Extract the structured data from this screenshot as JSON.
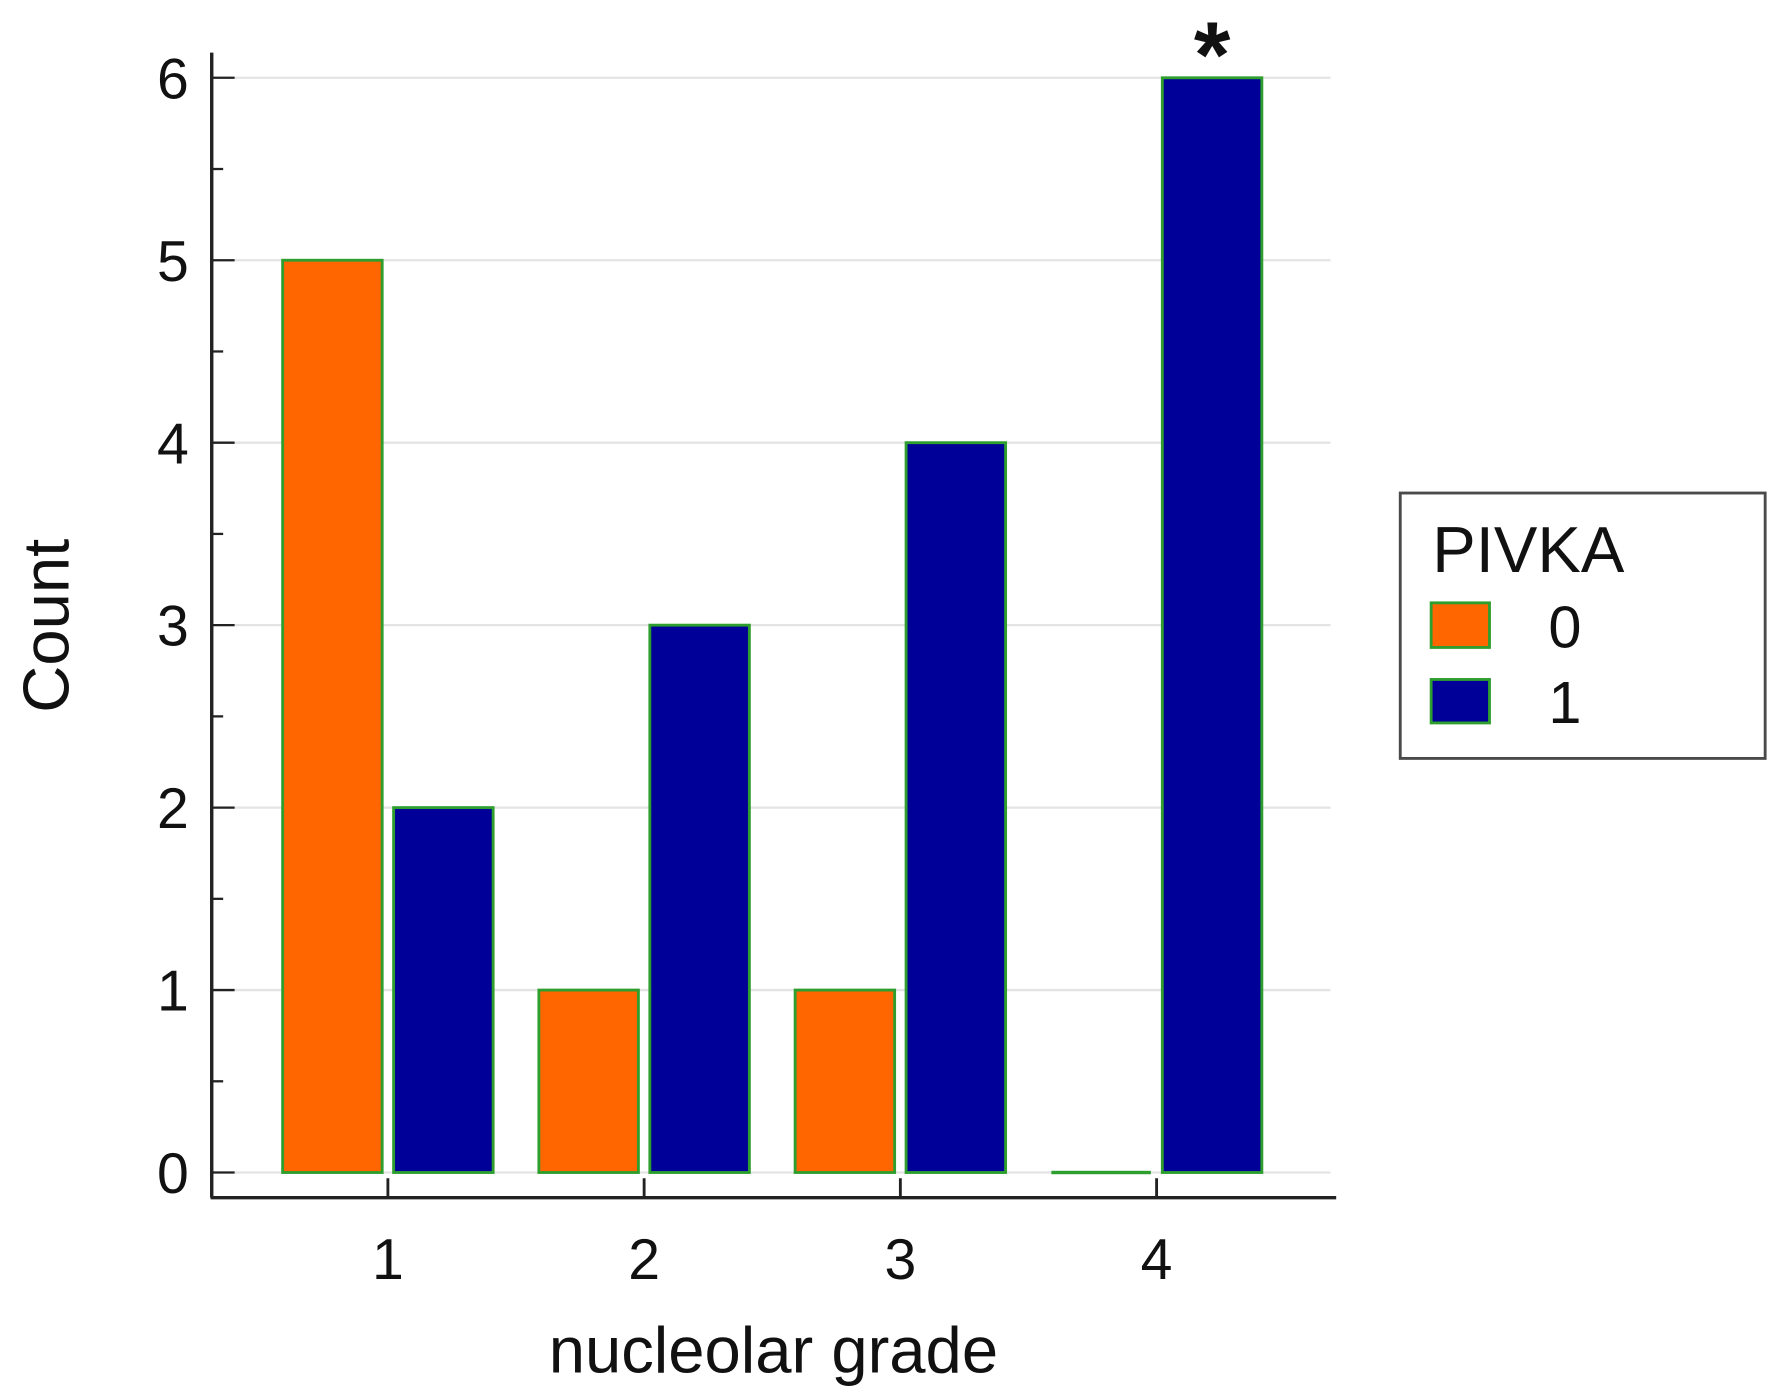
{
  "chart_data": {
    "type": "bar",
    "categories": [
      "1",
      "2",
      "3",
      "4"
    ],
    "series": [
      {
        "name": "0",
        "values": [
          5,
          1,
          1,
          0
        ],
        "color": "#ff6600"
      },
      {
        "name": "1",
        "values": [
          2,
          3,
          4,
          6
        ],
        "color": "#000099"
      }
    ],
    "bar_outline_color": "#2e9e2e",
    "grid_color": "#e4e4e4",
    "axis_color": "#222222",
    "xlabel": "nucleolar grade",
    "ylabel": "Count",
    "ylim": [
      0,
      6
    ],
    "yticks": [
      0,
      1,
      2,
      3,
      4,
      5,
      6
    ],
    "grid": true,
    "legend": {
      "title": "PIVKA"
    },
    "annotations": [
      {
        "text": "*",
        "category_index": 3,
        "series_index": 1
      }
    ]
  }
}
